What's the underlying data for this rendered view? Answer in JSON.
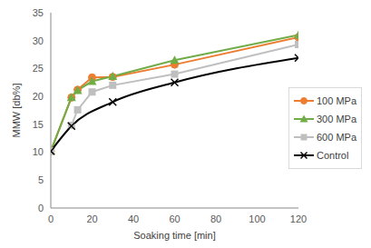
{
  "chart_data": {
    "type": "line",
    "x_label": "Soaking time  [min]",
    "y_label": "MMW [db%]",
    "x": [
      0,
      10,
      13,
      20,
      30,
      60,
      120
    ],
    "series": [
      {
        "name": "100 MPa",
        "color": "#ED7D31",
        "marker": "circle",
        "line_style": "solid",
        "values": [
          10.2,
          19.8,
          21.2,
          23.4,
          23.5,
          25.7,
          30.6
        ]
      },
      {
        "name": "300 MPa",
        "color": "#70AD47",
        "marker": "triangle",
        "line_style": "solid",
        "values": [
          10.2,
          19.8,
          21.1,
          22.7,
          23.6,
          26.5,
          31.0
        ]
      },
      {
        "name": "600 MPa",
        "color": "#BFBFBF",
        "marker": "square",
        "line_style": "solid",
        "values": [
          10.2,
          14.8,
          17.6,
          20.8,
          22.0,
          24.0,
          29.3
        ]
      },
      {
        "name": "Control",
        "color": "#000000",
        "marker": "x",
        "line_style": "smooth",
        "values": [
          10.2,
          14.7,
          null,
          null,
          19.0,
          22.5,
          26.9
        ]
      }
    ],
    "xlim": [
      0,
      120
    ],
    "xticks": [
      0,
      20,
      40,
      60,
      80,
      100,
      120
    ],
    "ylim": [
      0,
      35
    ],
    "yticks": [
      0,
      5,
      10,
      15,
      20,
      25,
      30,
      35
    ],
    "grid": false,
    "legend": "right"
  }
}
